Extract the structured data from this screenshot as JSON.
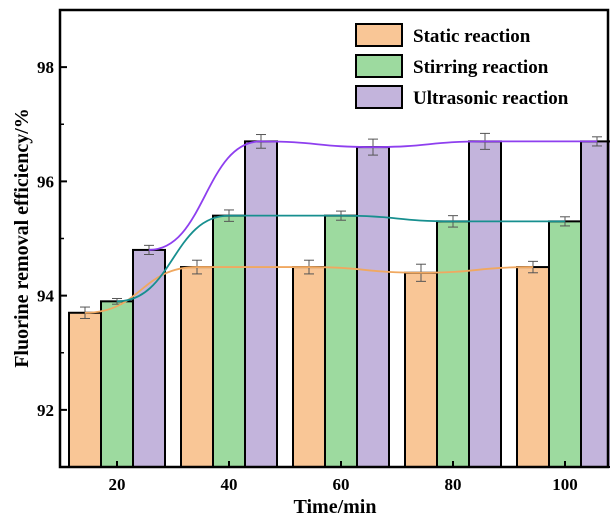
{
  "chart_data": {
    "type": "bar",
    "title": "",
    "xlabel": "Time/min",
    "ylabel": "Fluorine removal efficiency/%",
    "categories": [
      "20",
      "40",
      "60",
      "80",
      "100"
    ],
    "ylim": [
      91,
      99
    ],
    "yticks": [
      92,
      94,
      96,
      98
    ],
    "grid": false,
    "legend_position": "top-right",
    "trend_lines": true,
    "series": [
      {
        "name": "Static reaction",
        "values": [
          93.7,
          94.5,
          94.5,
          94.4,
          94.5
        ],
        "errors": [
          0.1,
          0.12,
          0.12,
          0.15,
          0.1
        ],
        "color": "#F9C696",
        "line_color": "#F0A860"
      },
      {
        "name": "Stirring reaction",
        "values": [
          93.9,
          95.4,
          95.4,
          95.3,
          95.3
        ],
        "errors": [
          0.05,
          0.1,
          0.08,
          0.1,
          0.08
        ],
        "color": "#9DDA9F",
        "line_color": "#178F8F"
      },
      {
        "name": "Ultrasonic reaction",
        "values": [
          94.8,
          96.7,
          96.6,
          96.7,
          96.7
        ],
        "errors": [
          0.08,
          0.12,
          0.14,
          0.14,
          0.08
        ],
        "color": "#C3B4DC",
        "line_color": "#8E3FEF"
      }
    ]
  }
}
